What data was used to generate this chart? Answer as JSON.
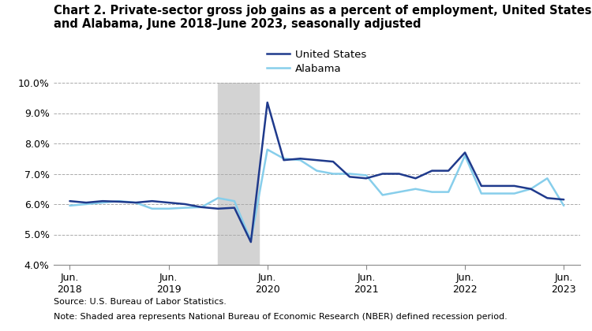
{
  "title_line1": "Chart 2. Private-sector gross job gains as a percent of employment, United States",
  "title_line2": "and Alabama, June 2018–June 2023, seasonally adjusted",
  "source": "Source: U.S. Bureau of Labor Statistics.",
  "note": "Note: Shaded area represents National Bureau of Economic Research (NBER) defined recession period.",
  "recession_start": 2019.917,
  "recession_end": 2020.333,
  "us_x": [
    2018.417,
    2018.583,
    2018.75,
    2018.917,
    2019.083,
    2019.25,
    2019.417,
    2019.583,
    2019.75,
    2019.917,
    2020.083,
    2020.25,
    2020.417,
    2020.583,
    2020.75,
    2020.917,
    2021.083,
    2021.25,
    2021.417,
    2021.583,
    2021.75,
    2021.917,
    2022.083,
    2022.25,
    2022.417,
    2022.583,
    2022.75,
    2022.917,
    2023.083,
    2023.25,
    2023.417
  ],
  "us_y": [
    6.1,
    6.05,
    6.1,
    6.08,
    6.05,
    6.1,
    6.05,
    6.0,
    5.9,
    5.85,
    5.88,
    4.75,
    9.35,
    7.45,
    7.5,
    7.45,
    7.4,
    6.9,
    6.85,
    7.0,
    7.0,
    6.85,
    7.1,
    7.1,
    7.7,
    6.6,
    6.6,
    6.6,
    6.5,
    6.2,
    6.15
  ],
  "al_x": [
    2018.417,
    2018.583,
    2018.75,
    2018.917,
    2019.083,
    2019.25,
    2019.417,
    2019.583,
    2019.75,
    2019.917,
    2020.083,
    2020.25,
    2020.417,
    2020.583,
    2020.75,
    2020.917,
    2021.083,
    2021.25,
    2021.417,
    2021.583,
    2021.75,
    2021.917,
    2022.083,
    2022.25,
    2022.417,
    2022.583,
    2022.75,
    2022.917,
    2023.083,
    2023.25,
    2023.417
  ],
  "al_y": [
    5.95,
    6.0,
    6.05,
    6.1,
    6.05,
    5.85,
    5.85,
    5.88,
    5.9,
    6.2,
    6.1,
    4.8,
    7.8,
    7.5,
    7.45,
    7.1,
    7.0,
    7.0,
    6.95,
    6.3,
    6.4,
    6.5,
    6.4,
    6.4,
    7.6,
    6.35,
    6.35,
    6.35,
    6.5,
    6.85,
    5.95
  ],
  "us_color": "#1f3a8c",
  "al_color": "#87ceeb",
  "recession_color": "#d3d3d3",
  "ylim": [
    4.0,
    10.0
  ],
  "yticks": [
    4.0,
    5.0,
    6.0,
    7.0,
    8.0,
    9.0,
    10.0
  ],
  "xtick_positions": [
    2018.417,
    2019.417,
    2020.417,
    2021.417,
    2022.417,
    2023.417
  ],
  "xtick_labels": [
    "Jun.\n2018",
    "Jun.\n2019",
    "Jun.\n2020",
    "Jun.\n2021",
    "Jun.\n2022",
    "Jun.\n2023"
  ],
  "linewidth": 1.8,
  "legend_labels": [
    "United States",
    "Alabama"
  ]
}
